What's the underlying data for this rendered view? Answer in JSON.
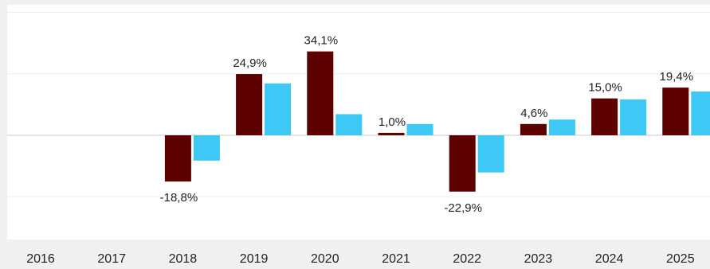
{
  "chart_data": {
    "type": "bar",
    "categories": [
      "2016",
      "2017",
      "2018",
      "2019",
      "2020",
      "2021",
      "2022",
      "2023",
      "2024",
      "2025"
    ],
    "series": [
      {
        "color": "#5c0000",
        "values": [
          null,
          null,
          -18.8,
          24.9,
          34.1,
          1.0,
          -22.9,
          4.6,
          15.0,
          19.4
        ],
        "labels": [
          "",
          "",
          "-18,8%",
          "24,9%",
          "34,1%",
          "1,0%",
          "-22,9%",
          "4,6%",
          "15,0%",
          "19,4%"
        ]
      },
      {
        "color": "#3ec8f5",
        "values": [
          null,
          null,
          -10.3,
          21.1,
          8.6,
          4.6,
          -15.1,
          6.4,
          14.6,
          17.8
        ]
      }
    ],
    "ylim": [
      -40,
      55
    ],
    "grid": true,
    "legend": "none"
  }
}
